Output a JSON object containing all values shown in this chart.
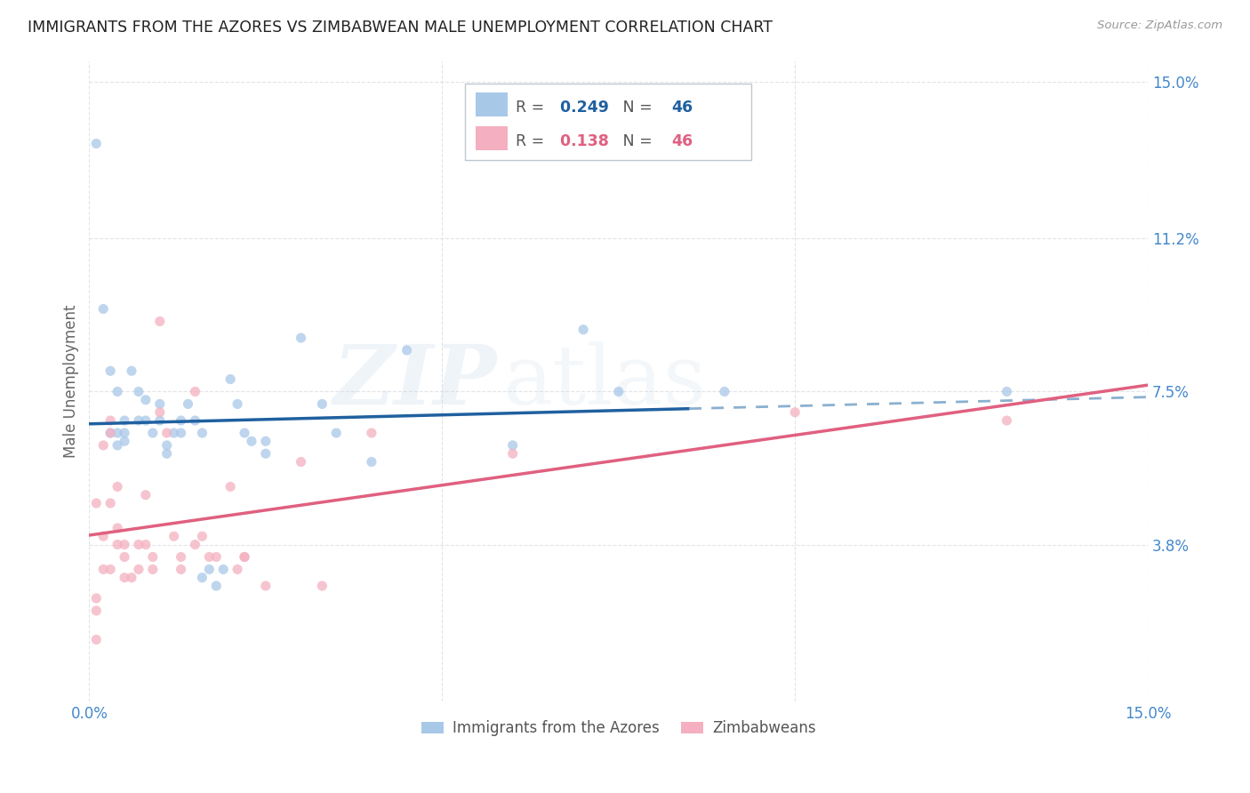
{
  "title": "IMMIGRANTS FROM THE AZORES VS ZIMBABWEAN MALE UNEMPLOYMENT CORRELATION CHART",
  "source": "Source: ZipAtlas.com",
  "ylabel": "Male Unemployment",
  "ytick_labels": [
    "15.0%",
    "11.2%",
    "7.5%",
    "3.8%"
  ],
  "ytick_values": [
    0.15,
    0.112,
    0.075,
    0.038
  ],
  "xtick_labels": [
    "0.0%",
    "",
    "",
    "15.0%"
  ],
  "xtick_values": [
    0.0,
    0.05,
    0.1,
    0.15
  ],
  "xlim": [
    0.0,
    0.15
  ],
  "ylim": [
    0.0,
    0.155
  ],
  "legend_blue_r": "0.249",
  "legend_blue_n": "46",
  "legend_pink_r": "0.138",
  "legend_pink_n": "46",
  "legend_label_blue": "Immigrants from the Azores",
  "legend_label_pink": "Zimbabweans",
  "watermark": "ZIPatlas",
  "blue_scatter": [
    [
      0.001,
      0.135
    ],
    [
      0.002,
      0.095
    ],
    [
      0.003,
      0.08
    ],
    [
      0.003,
      0.065
    ],
    [
      0.004,
      0.075
    ],
    [
      0.004,
      0.065
    ],
    [
      0.004,
      0.062
    ],
    [
      0.005,
      0.068
    ],
    [
      0.005,
      0.065
    ],
    [
      0.005,
      0.063
    ],
    [
      0.006,
      0.08
    ],
    [
      0.007,
      0.075
    ],
    [
      0.007,
      0.068
    ],
    [
      0.008,
      0.073
    ],
    [
      0.008,
      0.068
    ],
    [
      0.009,
      0.065
    ],
    [
      0.01,
      0.072
    ],
    [
      0.01,
      0.068
    ],
    [
      0.011,
      0.062
    ],
    [
      0.011,
      0.06
    ],
    [
      0.012,
      0.065
    ],
    [
      0.013,
      0.068
    ],
    [
      0.013,
      0.065
    ],
    [
      0.014,
      0.072
    ],
    [
      0.015,
      0.068
    ],
    [
      0.016,
      0.065
    ],
    [
      0.016,
      0.03
    ],
    [
      0.017,
      0.032
    ],
    [
      0.018,
      0.028
    ],
    [
      0.019,
      0.032
    ],
    [
      0.02,
      0.078
    ],
    [
      0.021,
      0.072
    ],
    [
      0.022,
      0.065
    ],
    [
      0.023,
      0.063
    ],
    [
      0.025,
      0.063
    ],
    [
      0.025,
      0.06
    ],
    [
      0.03,
      0.088
    ],
    [
      0.033,
      0.072
    ],
    [
      0.035,
      0.065
    ],
    [
      0.04,
      0.058
    ],
    [
      0.045,
      0.085
    ],
    [
      0.06,
      0.062
    ],
    [
      0.07,
      0.09
    ],
    [
      0.075,
      0.075
    ],
    [
      0.09,
      0.075
    ],
    [
      0.13,
      0.075
    ]
  ],
  "pink_scatter": [
    [
      0.001,
      0.048
    ],
    [
      0.001,
      0.025
    ],
    [
      0.001,
      0.022
    ],
    [
      0.002,
      0.062
    ],
    [
      0.002,
      0.04
    ],
    [
      0.002,
      0.032
    ],
    [
      0.003,
      0.068
    ],
    [
      0.003,
      0.065
    ],
    [
      0.003,
      0.048
    ],
    [
      0.003,
      0.032
    ],
    [
      0.004,
      0.052
    ],
    [
      0.004,
      0.042
    ],
    [
      0.004,
      0.038
    ],
    [
      0.005,
      0.038
    ],
    [
      0.005,
      0.035
    ],
    [
      0.005,
      0.03
    ],
    [
      0.006,
      0.03
    ],
    [
      0.007,
      0.038
    ],
    [
      0.007,
      0.032
    ],
    [
      0.008,
      0.05
    ],
    [
      0.008,
      0.038
    ],
    [
      0.009,
      0.035
    ],
    [
      0.009,
      0.032
    ],
    [
      0.01,
      0.092
    ],
    [
      0.01,
      0.07
    ],
    [
      0.011,
      0.065
    ],
    [
      0.012,
      0.04
    ],
    [
      0.013,
      0.035
    ],
    [
      0.013,
      0.032
    ],
    [
      0.015,
      0.075
    ],
    [
      0.015,
      0.038
    ],
    [
      0.016,
      0.04
    ],
    [
      0.017,
      0.035
    ],
    [
      0.018,
      0.035
    ],
    [
      0.02,
      0.052
    ],
    [
      0.021,
      0.032
    ],
    [
      0.022,
      0.035
    ],
    [
      0.022,
      0.035
    ],
    [
      0.025,
      0.028
    ],
    [
      0.03,
      0.058
    ],
    [
      0.033,
      0.028
    ],
    [
      0.04,
      0.065
    ],
    [
      0.06,
      0.06
    ],
    [
      0.1,
      0.07
    ],
    [
      0.13,
      0.068
    ],
    [
      0.001,
      0.015
    ]
  ],
  "blue_color": "#a8c8e8",
  "pink_color": "#f4b0c0",
  "blue_line_color": "#2060a0",
  "blue_line_dash_color": "#8ab0d0",
  "pink_line_color": "#e06080",
  "bg_color": "#ffffff",
  "grid_color": "#e0e4e8",
  "title_color": "#222222",
  "axis_tick_color": "#4488cc",
  "ylabel_color": "#666666",
  "scatter_alpha": 0.75,
  "scatter_size": 65,
  "blue_line_solid_end": 0.085,
  "blue_line_dash_start": 0.085
}
